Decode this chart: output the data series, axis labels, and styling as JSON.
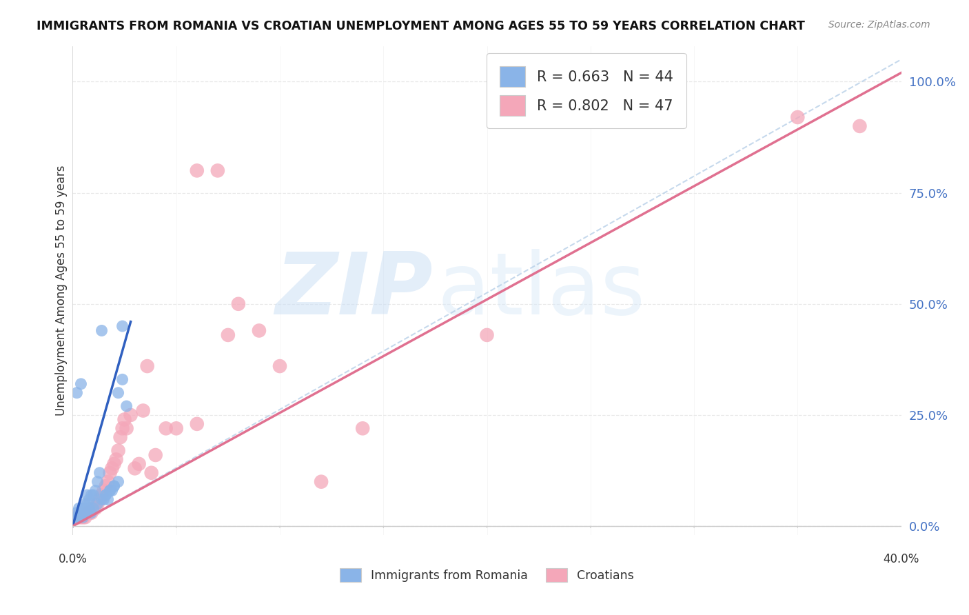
{
  "title": "IMMIGRANTS FROM ROMANIA VS CROATIAN UNEMPLOYMENT AMONG AGES 55 TO 59 YEARS CORRELATION CHART",
  "source": "Source: ZipAtlas.com",
  "ylabel": "Unemployment Among Ages 55 to 59 years",
  "ylabel_ticks": [
    "0.0%",
    "25.0%",
    "50.0%",
    "75.0%",
    "100.0%"
  ],
  "ylabel_tick_vals": [
    0.0,
    0.25,
    0.5,
    0.75,
    1.0
  ],
  "xlim": [
    0.0,
    0.4
  ],
  "ylim": [
    -0.02,
    1.08
  ],
  "romania_color": "#8ab4e8",
  "croatia_color": "#f4a7b9",
  "romania_line_color": "#3060c0",
  "croatia_line_color": "#e07090",
  "dash_color": "#b8d0e8",
  "romania_R": 0.663,
  "romania_N": 44,
  "croatia_R": 0.802,
  "croatia_N": 47,
  "watermark_zip": "ZIP",
  "watermark_atlas": "atlas",
  "legend_label_romania": "Immigrants from Romania",
  "legend_label_croatia": "Croatians",
  "romania_scatter_x": [
    0.001,
    0.002,
    0.002,
    0.003,
    0.003,
    0.004,
    0.004,
    0.005,
    0.005,
    0.006,
    0.006,
    0.007,
    0.007,
    0.008,
    0.009,
    0.01,
    0.011,
    0.012,
    0.013,
    0.014,
    0.015,
    0.016,
    0.017,
    0.018,
    0.019,
    0.02,
    0.022,
    0.024,
    0.003,
    0.004,
    0.005,
    0.006,
    0.007,
    0.008,
    0.009,
    0.01,
    0.012,
    0.014,
    0.016,
    0.018,
    0.02,
    0.022,
    0.024,
    0.026
  ],
  "romania_scatter_y": [
    0.02,
    0.03,
    0.3,
    0.02,
    0.04,
    0.03,
    0.32,
    0.03,
    0.04,
    0.04,
    0.05,
    0.05,
    0.07,
    0.06,
    0.07,
    0.07,
    0.08,
    0.1,
    0.12,
    0.44,
    0.06,
    0.07,
    0.06,
    0.08,
    0.08,
    0.09,
    0.1,
    0.45,
    0.02,
    0.03,
    0.02,
    0.03,
    0.03,
    0.04,
    0.03,
    0.04,
    0.05,
    0.06,
    0.07,
    0.08,
    0.09,
    0.3,
    0.33,
    0.27
  ],
  "croatia_scatter_x": [
    0.001,
    0.002,
    0.003,
    0.004,
    0.005,
    0.006,
    0.007,
    0.008,
    0.009,
    0.01,
    0.011,
    0.012,
    0.013,
    0.014,
    0.015,
    0.016,
    0.017,
    0.018,
    0.019,
    0.02,
    0.021,
    0.022,
    0.023,
    0.024,
    0.025,
    0.026,
    0.028,
    0.03,
    0.032,
    0.034,
    0.036,
    0.038,
    0.04,
    0.045,
    0.05,
    0.06,
    0.07,
    0.075,
    0.08,
    0.09,
    0.1,
    0.12,
    0.14,
    0.2,
    0.35,
    0.38,
    0.06
  ],
  "croatia_scatter_y": [
    0.02,
    0.02,
    0.02,
    0.02,
    0.02,
    0.02,
    0.03,
    0.03,
    0.03,
    0.04,
    0.04,
    0.05,
    0.06,
    0.07,
    0.08,
    0.09,
    0.1,
    0.12,
    0.13,
    0.14,
    0.15,
    0.17,
    0.2,
    0.22,
    0.24,
    0.22,
    0.25,
    0.13,
    0.14,
    0.26,
    0.36,
    0.12,
    0.16,
    0.22,
    0.22,
    0.23,
    0.8,
    0.43,
    0.5,
    0.44,
    0.36,
    0.1,
    0.22,
    0.43,
    0.92,
    0.9,
    0.8
  ],
  "romania_line_x": [
    0.0,
    0.028
  ],
  "romania_line_y": [
    0.0,
    0.46
  ],
  "croatia_line_x": [
    0.0,
    0.4
  ],
  "croatia_line_y": [
    0.0,
    1.02
  ],
  "dash_line_x": [
    0.0,
    0.4
  ],
  "dash_line_y": [
    0.0,
    1.05
  ],
  "background_color": "#ffffff",
  "grid_color": "#e8e8e8",
  "axis_color": "#cccccc",
  "tick_color": "#4472c4",
  "text_color": "#333333"
}
